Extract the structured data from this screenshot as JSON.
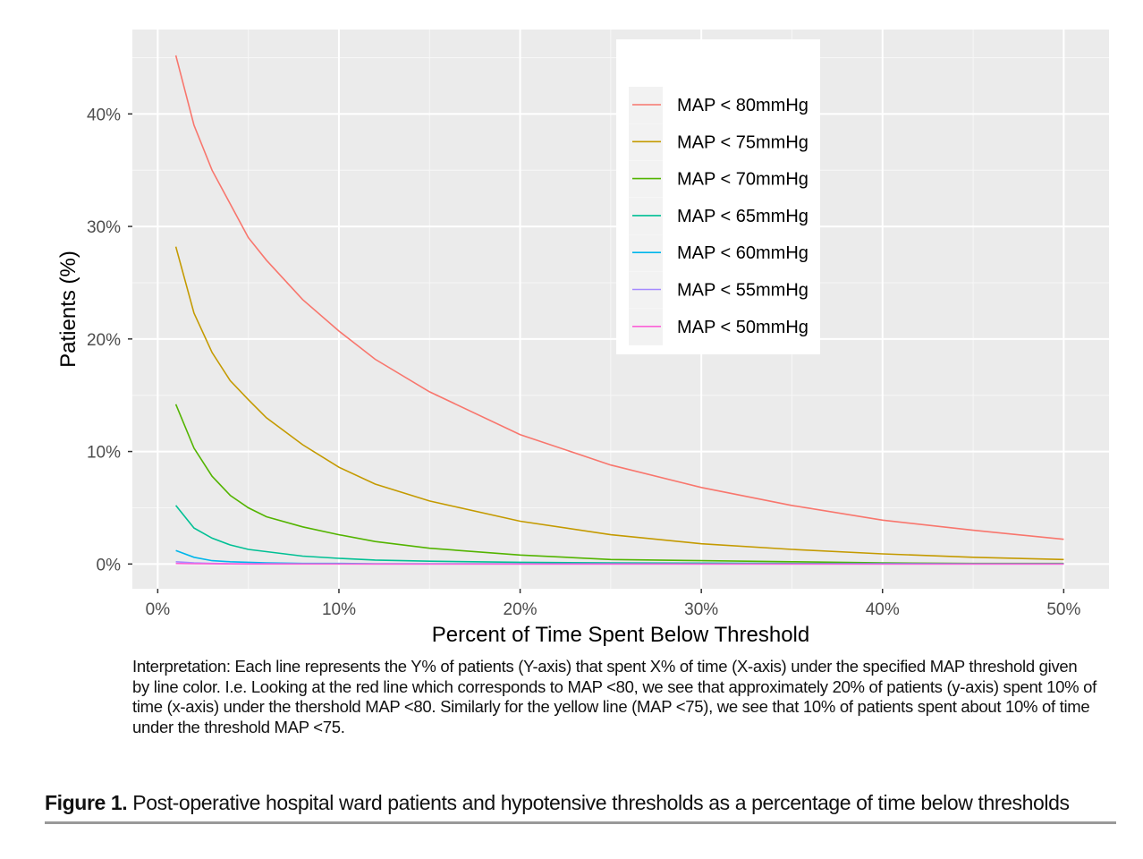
{
  "chart_data": {
    "type": "line",
    "xlabel": "Percent of Time Spent Below Threshold",
    "ylabel": "Patients (%)",
    "xlim": [
      -1.4,
      52.5
    ],
    "ylim": [
      -2.2,
      47.5
    ],
    "x_ticks": [
      0,
      10,
      20,
      30,
      40,
      50
    ],
    "x_tick_labels": [
      "0%",
      "10%",
      "20%",
      "30%",
      "40%",
      "50%"
    ],
    "y_ticks": [
      0,
      10,
      20,
      30,
      40
    ],
    "y_tick_labels": [
      "0%",
      "10%",
      "20%",
      "30%",
      "40%"
    ],
    "grid": true,
    "legend_position": "top-right inside",
    "x": [
      1,
      2,
      3,
      4,
      5,
      6,
      8,
      10,
      12,
      15,
      20,
      25,
      30,
      35,
      40,
      45,
      50
    ],
    "series": [
      {
        "name": "MAP < 80mmHg",
        "color": "#F8766D",
        "values": [
          45.2,
          39.0,
          35.0,
          32.0,
          29.0,
          27.0,
          23.5,
          20.7,
          18.2,
          15.3,
          11.5,
          8.8,
          6.8,
          5.2,
          3.9,
          3.0,
          2.2
        ]
      },
      {
        "name": "MAP < 75mmHg",
        "color": "#C49A00",
        "values": [
          28.2,
          22.3,
          18.8,
          16.3,
          14.6,
          13.0,
          10.6,
          8.6,
          7.1,
          5.6,
          3.8,
          2.6,
          1.8,
          1.3,
          0.9,
          0.6,
          0.4
        ]
      },
      {
        "name": "MAP < 70mmHg",
        "color": "#53B400",
        "values": [
          14.2,
          10.3,
          7.8,
          6.1,
          5.0,
          4.2,
          3.3,
          2.6,
          2.0,
          1.4,
          0.8,
          0.4,
          0.3,
          0.2,
          0.1,
          0.05,
          0.05
        ]
      },
      {
        "name": "MAP < 65mmHg",
        "color": "#00C094",
        "values": [
          5.2,
          3.2,
          2.3,
          1.7,
          1.3,
          1.1,
          0.7,
          0.5,
          0.35,
          0.25,
          0.15,
          0.1,
          0.08,
          0.05,
          0.05,
          0.03,
          0.03
        ]
      },
      {
        "name": "MAP < 60mmHg",
        "color": "#00B6EB",
        "values": [
          1.2,
          0.6,
          0.3,
          0.2,
          0.15,
          0.1,
          0.05,
          0.05,
          0.03,
          0.03,
          0.02,
          0.02,
          0.01,
          0.01,
          0.01,
          0.01,
          0.01
        ]
      },
      {
        "name": "MAP < 55mmHg",
        "color": "#A58AFF",
        "values": [
          0.2,
          0.1,
          0.05,
          0.03,
          0.02,
          0.02,
          0.01,
          0.01,
          0,
          0,
          0,
          0,
          0,
          0,
          0,
          0,
          0
        ]
      },
      {
        "name": "MAP < 50mmHg",
        "color": "#FB61D7",
        "values": [
          0.05,
          0.03,
          0.02,
          0.01,
          0,
          0,
          0,
          0,
          0,
          0,
          0,
          0,
          0,
          0,
          0,
          0,
          0
        ]
      }
    ]
  },
  "interpretation": "Interpretation: Each line represents the Y% of patients (Y-axis) that spent X% of time (X-axis) under the specified MAP threshold given by line color. I.e. Looking at the red line which corresponds to MAP <80, we see that approximately 20% of patients (y-axis) spent 10% of time (x-axis) under the thershold MAP <80. Similarly for the yellow line (MAP <75), we see that 10% of patients spent about 10% of time under the threshold MAP <75.",
  "caption": {
    "label": "Figure 1.",
    "text": " Post-operative hospital ward patients and hypotensive thresholds as a percentage of time below thresholds"
  }
}
